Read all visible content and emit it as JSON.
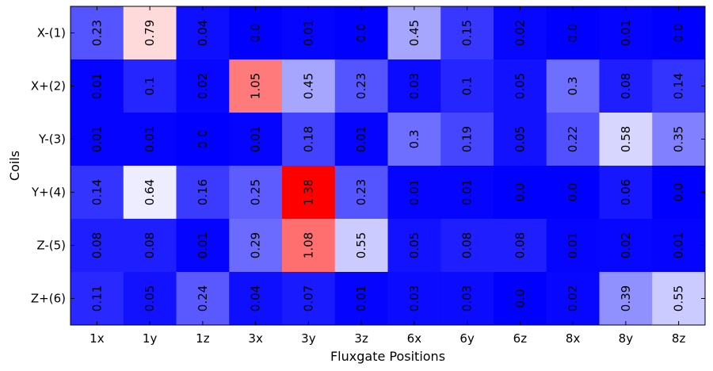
{
  "chart_data": {
    "type": "heatmap",
    "title": "",
    "xlabel": "Fluxgate Positions",
    "ylabel": "Coils",
    "x_categories": [
      "1x",
      "1y",
      "1z",
      "3x",
      "3y",
      "3z",
      "6x",
      "6y",
      "6z",
      "8x",
      "8y",
      "8z"
    ],
    "y_categories": [
      "X-(1)",
      "X+(2)",
      "Y-(3)",
      "Y+(4)",
      "Z-(5)",
      "Z+(6)"
    ],
    "values": [
      [
        0.23,
        0.79,
        0.04,
        0.0,
        0.01,
        0.0,
        0.45,
        0.15,
        0.02,
        0.0,
        0.01,
        0.0
      ],
      [
        0.01,
        0.1,
        0.02,
        1.05,
        0.45,
        0.23,
        0.03,
        0.1,
        0.05,
        0.3,
        0.08,
        0.14
      ],
      [
        0.01,
        0.01,
        0.0,
        0.01,
        0.18,
        0.01,
        0.3,
        0.19,
        0.05,
        0.22,
        0.58,
        0.35
      ],
      [
        0.14,
        0.64,
        0.16,
        0.25,
        1.38,
        0.23,
        0.01,
        0.01,
        0.0,
        0.0,
        0.06,
        0.0
      ],
      [
        0.08,
        0.08,
        0.01,
        0.29,
        1.08,
        0.55,
        0.05,
        0.08,
        0.08,
        0.01,
        0.02,
        0.01
      ],
      [
        0.11,
        0.05,
        0.24,
        0.04,
        0.07,
        0.01,
        0.03,
        0.03,
        0.0,
        0.02,
        0.39,
        0.55
      ]
    ],
    "value_labels": [
      [
        "0.23",
        "0.79",
        "0.04",
        "0.0",
        "0.01",
        "0.0",
        "0.45",
        "0.15",
        "0.02",
        "0.0",
        "0.01",
        "0.0"
      ],
      [
        "0.01",
        "0.1",
        "0.02",
        "1.05",
        "0.45",
        "0.23",
        "0.03",
        "0.1",
        "0.05",
        "0.3",
        "0.08",
        "0.14"
      ],
      [
        "0.01",
        "0.01",
        "0.0",
        "0.01",
        "0.18",
        "0.01",
        "0.3",
        "0.19",
        "0.05",
        "0.22",
        "0.58",
        "0.35"
      ],
      [
        "0.14",
        "0.64",
        "0.16",
        "0.25",
        "1.38",
        "0.23",
        "0.01",
        "0.01",
        "0.0",
        "0.0",
        "0.06",
        "0.0"
      ],
      [
        "0.08",
        "0.08",
        "0.01",
        "0.29",
        "1.08",
        "0.55",
        "0.05",
        "0.08",
        "0.08",
        "0.01",
        "0.02",
        "0.01"
      ],
      [
        "0.11",
        "0.05",
        "0.24",
        "0.04",
        "0.07",
        "0.01",
        "0.03",
        "0.03",
        "0.0",
        "0.02",
        "0.39",
        "0.55"
      ]
    ],
    "colormap": "bwr",
    "color_range": [
      0,
      1.38
    ],
    "colors": {
      "low": "#0000ff",
      "mid": "#ffffff",
      "high": "#ff0000"
    },
    "grid": false,
    "legend": "none"
  }
}
